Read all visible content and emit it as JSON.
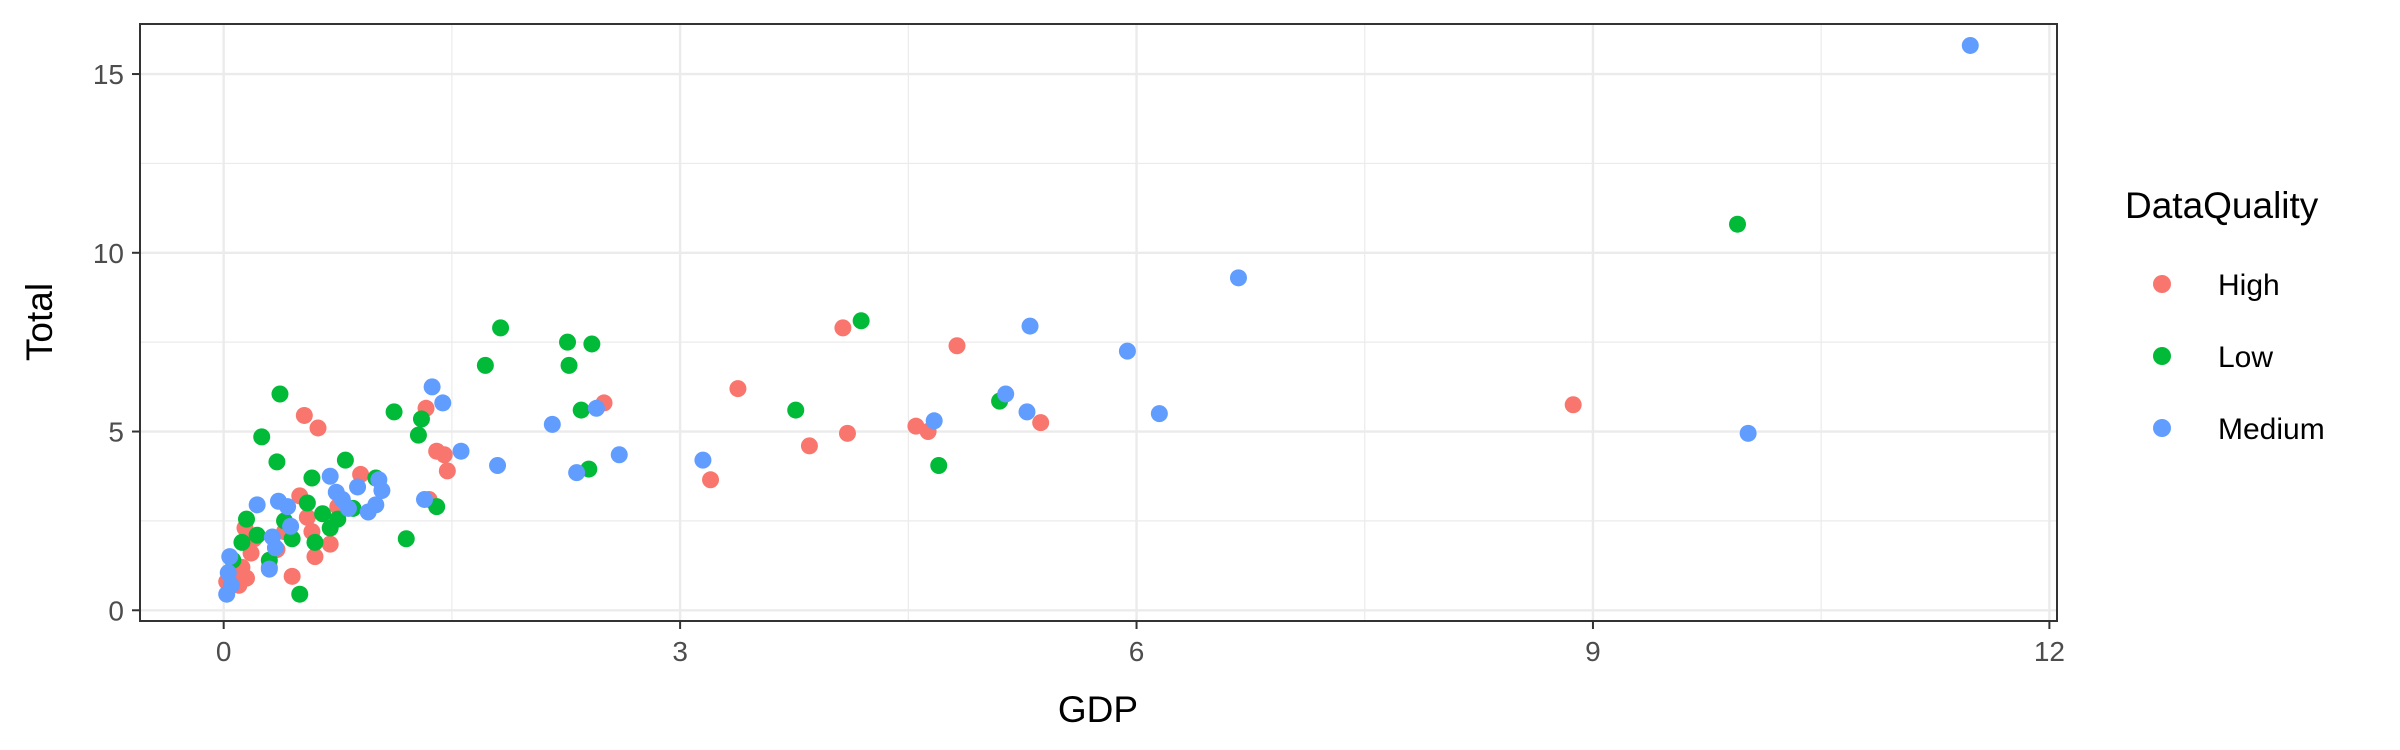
{
  "chart_data": {
    "type": "scatter",
    "title": "",
    "xlabel": "GDP",
    "ylabel": "Total",
    "xlim": [
      -0.55,
      12.05
    ],
    "ylim": [
      -0.3,
      16.4
    ],
    "x_ticks": [
      0,
      3,
      6,
      9,
      12
    ],
    "y_ticks": [
      0,
      5,
      10,
      15
    ],
    "x_tick_labels": [
      "0",
      "3",
      "6",
      "9",
      "12"
    ],
    "y_tick_labels": [
      "0",
      "5",
      "10",
      "15"
    ],
    "x_minor_grid": [
      1.5,
      4.5,
      7.5,
      10.5
    ],
    "y_minor_grid": [
      2.5,
      7.5,
      12.5
    ],
    "grid": true,
    "legend": {
      "title": "DataQuality",
      "placement": "right",
      "entries": [
        "High",
        "Low",
        "Medium"
      ]
    },
    "colors": {
      "High": "#F8766D",
      "Low": "#00BA38",
      "Medium": "#619CFF"
    },
    "series": [
      {
        "name": "High",
        "points": [
          [
            0.02,
            0.8
          ],
          [
            0.05,
            1.0
          ],
          [
            0.1,
            0.7
          ],
          [
            0.12,
            1.2
          ],
          [
            0.15,
            0.9
          ],
          [
            0.18,
            1.6
          ],
          [
            0.2,
            2.0
          ],
          [
            0.14,
            2.3
          ],
          [
            0.3,
            1.2
          ],
          [
            0.35,
            1.7
          ],
          [
            0.4,
            2.2
          ],
          [
            0.45,
            0.95
          ],
          [
            0.5,
            3.2
          ],
          [
            0.55,
            2.6
          ],
          [
            0.58,
            2.2
          ],
          [
            0.6,
            1.5
          ],
          [
            0.62,
            5.1
          ],
          [
            0.53,
            5.45
          ],
          [
            0.7,
            1.85
          ],
          [
            0.75,
            2.9
          ],
          [
            0.9,
            3.8
          ],
          [
            1.33,
            5.65
          ],
          [
            1.35,
            3.1
          ],
          [
            1.4,
            4.45
          ],
          [
            1.45,
            4.35
          ],
          [
            1.47,
            3.9
          ],
          [
            2.5,
            5.8
          ],
          [
            3.2,
            3.65
          ],
          [
            3.38,
            6.2
          ],
          [
            3.85,
            4.6
          ],
          [
            4.07,
            7.9
          ],
          [
            4.1,
            4.95
          ],
          [
            4.55,
            5.15
          ],
          [
            4.63,
            5.0
          ],
          [
            4.82,
            7.4
          ],
          [
            5.37,
            5.25
          ],
          [
            8.87,
            5.75
          ]
        ]
      },
      {
        "name": "Low",
        "points": [
          [
            0.06,
            1.4
          ],
          [
            0.12,
            1.9
          ],
          [
            0.15,
            2.55
          ],
          [
            0.22,
            2.1
          ],
          [
            0.25,
            4.85
          ],
          [
            0.3,
            1.4
          ],
          [
            0.35,
            4.15
          ],
          [
            0.37,
            6.05
          ],
          [
            0.4,
            2.5
          ],
          [
            0.45,
            2.0
          ],
          [
            0.5,
            0.45
          ],
          [
            0.55,
            3.0
          ],
          [
            0.58,
            3.7
          ],
          [
            0.6,
            1.9
          ],
          [
            0.65,
            2.7
          ],
          [
            0.7,
            2.3
          ],
          [
            0.75,
            2.55
          ],
          [
            0.8,
            4.2
          ],
          [
            0.85,
            2.85
          ],
          [
            1.0,
            3.7
          ],
          [
            1.12,
            5.55
          ],
          [
            1.2,
            2.0
          ],
          [
            1.28,
            4.9
          ],
          [
            1.3,
            5.35
          ],
          [
            1.4,
            2.9
          ],
          [
            1.72,
            6.85
          ],
          [
            1.82,
            7.9
          ],
          [
            2.26,
            7.5
          ],
          [
            2.27,
            6.85
          ],
          [
            2.35,
            5.6
          ],
          [
            2.4,
            3.95
          ],
          [
            2.42,
            7.45
          ],
          [
            3.76,
            5.6
          ],
          [
            4.19,
            8.1
          ],
          [
            4.7,
            4.05
          ],
          [
            5.1,
            5.85
          ],
          [
            9.95,
            10.8
          ]
        ]
      },
      {
        "name": "Medium",
        "points": [
          [
            0.02,
            0.45
          ],
          [
            0.03,
            1.05
          ],
          [
            0.04,
            1.5
          ],
          [
            0.05,
            0.7
          ],
          [
            0.22,
            2.95
          ],
          [
            0.3,
            1.15
          ],
          [
            0.32,
            2.05
          ],
          [
            0.34,
            1.75
          ],
          [
            0.36,
            3.05
          ],
          [
            0.42,
            2.9
          ],
          [
            0.44,
            2.35
          ],
          [
            0.7,
            3.75
          ],
          [
            0.74,
            3.3
          ],
          [
            0.78,
            3.1
          ],
          [
            0.82,
            2.85
          ],
          [
            0.88,
            3.45
          ],
          [
            0.95,
            2.75
          ],
          [
            1.0,
            2.95
          ],
          [
            1.02,
            3.65
          ],
          [
            1.04,
            3.35
          ],
          [
            1.32,
            3.1
          ],
          [
            1.37,
            6.25
          ],
          [
            1.44,
            5.8
          ],
          [
            1.56,
            4.45
          ],
          [
            1.8,
            4.05
          ],
          [
            2.16,
            5.2
          ],
          [
            2.32,
            3.85
          ],
          [
            2.45,
            5.65
          ],
          [
            2.6,
            4.35
          ],
          [
            3.15,
            4.2
          ],
          [
            4.67,
            5.3
          ],
          [
            5.14,
            6.05
          ],
          [
            5.28,
            5.55
          ],
          [
            5.3,
            7.95
          ],
          [
            5.94,
            7.25
          ],
          [
            6.15,
            5.5
          ],
          [
            6.67,
            9.3
          ],
          [
            10.02,
            4.95
          ],
          [
            11.48,
            15.8
          ]
        ]
      }
    ]
  }
}
